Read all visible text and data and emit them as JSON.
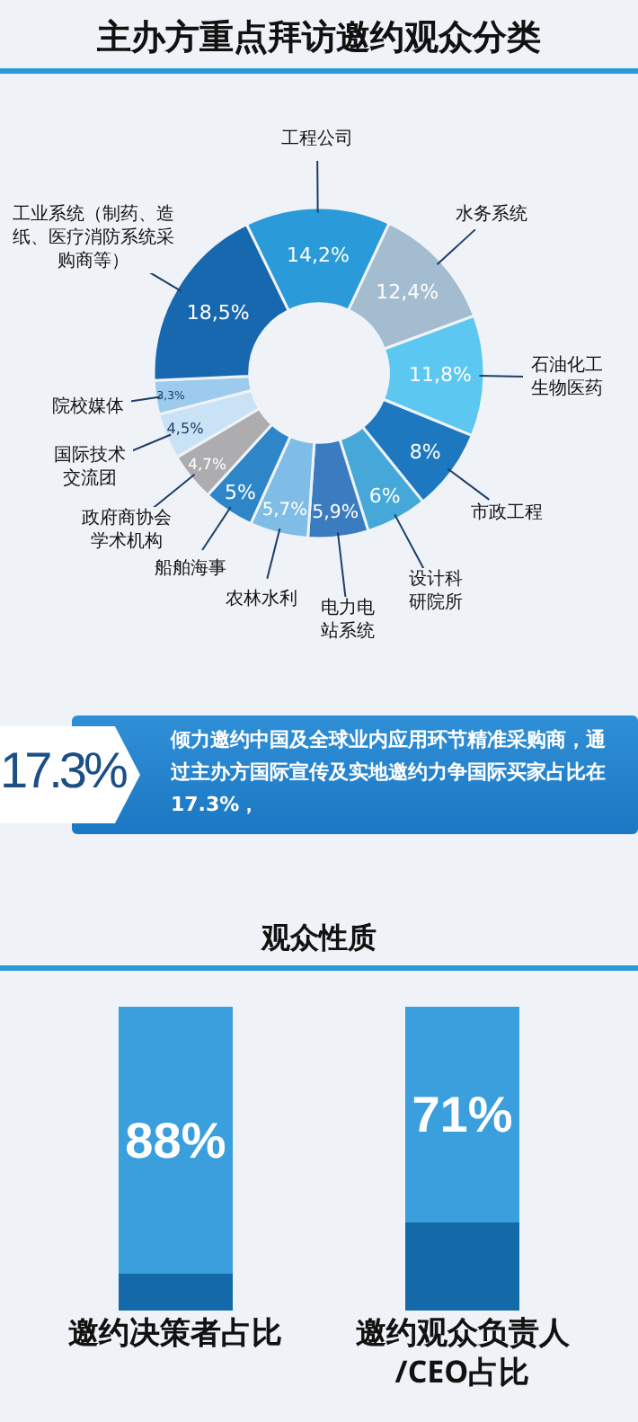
{
  "chart_data": [
    {
      "type": "donut",
      "title": "主办方重点拜访邀约观众分类",
      "categories": [
        "工程公司",
        "水务系统",
        "石油化工生物医药",
        "市政工程",
        "设计科研院所",
        "电力电站系统",
        "农林水利",
        "船舶海事",
        "政府商协会学术机构",
        "国际技术交流团",
        "院校媒体",
        "工业系统（制药、造纸、医疗消防系统采购商等）"
      ],
      "values": [
        14.2,
        12.4,
        11.8,
        8,
        6,
        5.9,
        5.7,
        5,
        4.7,
        4.5,
        3.3,
        18.5
      ],
      "value_labels": [
        "14,2%",
        "12,4%",
        "11,8%",
        "8%",
        "6%",
        "5,9%",
        "5,7%",
        "5%",
        "4,7%",
        "4,5%",
        "3,3%",
        "18,5%"
      ],
      "colors": [
        "#2a9ad8",
        "#a4bccf",
        "#5cc7f0",
        "#1e78c0",
        "#45a8d8",
        "#3a7cbf",
        "#7fbde6",
        "#2e86c8",
        "#adadb0",
        "#c9e2f5",
        "#9ccbee",
        "#1868b0"
      ]
    },
    {
      "type": "other",
      "annotations": [
        "17.3%",
        "倾力邀约中国及全球业内应用环节精准采购商，通过主办方国际宣传及实地邀约力争国际买家占比在17.3%，"
      ]
    },
    {
      "type": "bar",
      "title": "观众性质",
      "categories": [
        "邀约决策者占比",
        "邀约观众负责人\n/CEO占比"
      ],
      "stacked": true,
      "ylim": [
        0,
        100
      ],
      "tick_labels": false,
      "series": [
        {
          "color": "#146aa8",
          "values": [
            12,
            29
          ]
        },
        {
          "color": "#3a9fdc",
          "values": [
            88,
            71
          ],
          "value_labels": [
            "88%",
            "71%"
          ]
        }
      ]
    }
  ]
}
